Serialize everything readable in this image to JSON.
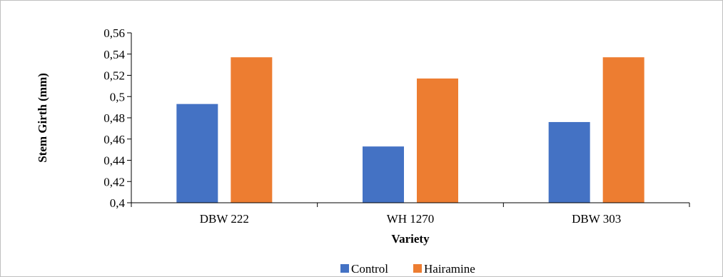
{
  "chart_data": {
    "type": "bar",
    "categories": [
      "DBW 222",
      "WH 1270",
      "DBW 303"
    ],
    "series": [
      {
        "name": "Control",
        "values": [
          0.493,
          0.453,
          0.476
        ],
        "color": "#4472c4"
      },
      {
        "name": "Hairamine",
        "values": [
          0.537,
          0.517,
          0.537
        ],
        "color": "#ed7d31"
      }
    ],
    "xlabel": "Variety",
    "ylabel": "Stem Girth (mm)",
    "ylim": [
      0.4,
      0.56
    ],
    "yticks": [
      "0,4",
      "0,42",
      "0,44",
      "0,46",
      "0,48",
      "0,5",
      "0,52",
      "0,54",
      "0,56"
    ],
    "grid": false,
    "legend_position": "bottom"
  }
}
